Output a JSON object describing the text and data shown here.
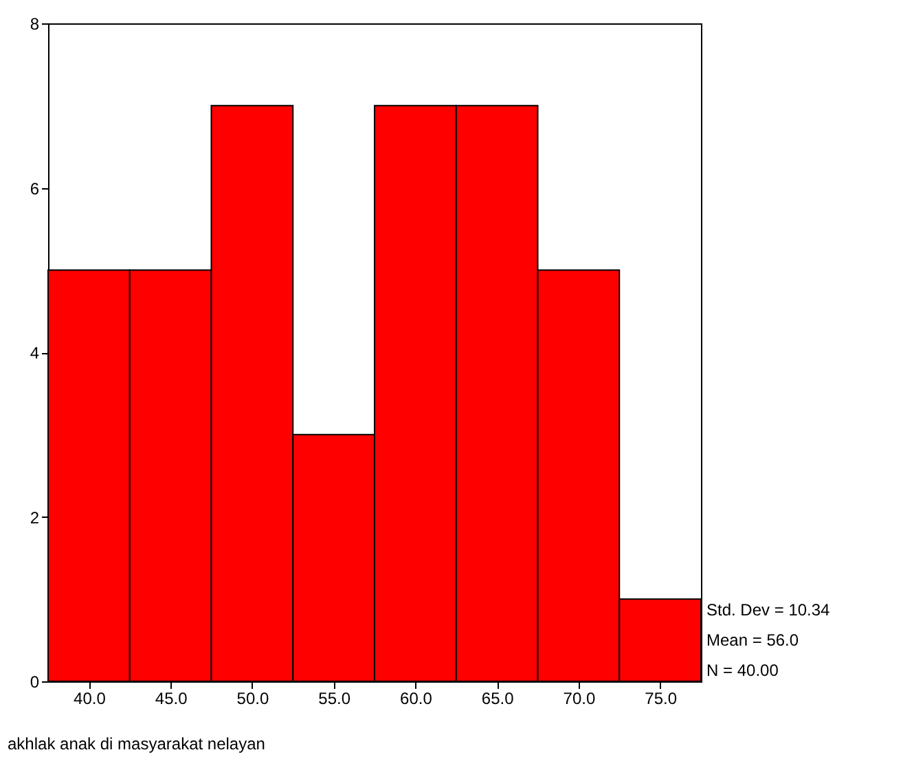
{
  "chart_data": {
    "type": "histogram",
    "xlabel": "akhlak anak di masyarakat nelayan",
    "bins": [
      37.5,
      42.5,
      47.5,
      52.5,
      57.5,
      62.5,
      67.5,
      72.5,
      77.5
    ],
    "values": [
      5,
      5,
      7,
      3,
      7,
      7,
      5,
      1
    ],
    "color": "#ff0000",
    "xlim": [
      37.5,
      77.5
    ],
    "xticks": [
      {
        "value": 40,
        "label": "40.0"
      },
      {
        "value": 45,
        "label": "45.0"
      },
      {
        "value": 50,
        "label": "50.0"
      },
      {
        "value": 55,
        "label": "55.0"
      },
      {
        "value": 60,
        "label": "60.0"
      },
      {
        "value": 65,
        "label": "65.0"
      },
      {
        "value": 70,
        "label": "70.0"
      },
      {
        "value": 75,
        "label": "75.0"
      }
    ],
    "ylim": [
      0,
      8
    ],
    "yticks": [
      0,
      2,
      4,
      6,
      8
    ],
    "grid": false,
    "annotations": [
      "Std. Dev = 10.34",
      "Mean = 56.0",
      "N = 40.00"
    ]
  }
}
